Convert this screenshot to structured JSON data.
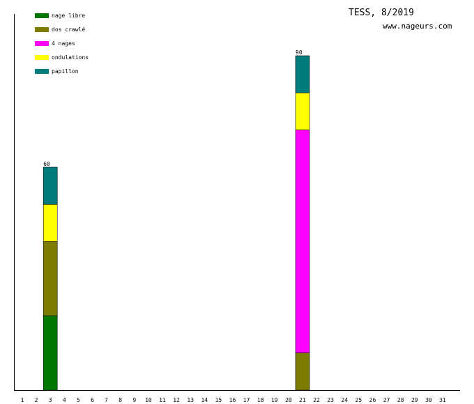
{
  "title": "TESS, 8/2019",
  "site": "www.nageurs.com",
  "chart_data": {
    "type": "bar",
    "stacked": true,
    "categories": [
      "1",
      "2",
      "3",
      "4",
      "5",
      "6",
      "7",
      "8",
      "9",
      "10",
      "11",
      "12",
      "13",
      "14",
      "15",
      "16",
      "17",
      "18",
      "19",
      "20",
      "21",
      "22",
      "23",
      "24",
      "25",
      "26",
      "27",
      "28",
      "29",
      "30",
      "31"
    ],
    "ylim": [
      0,
      90
    ],
    "legend_position": "top-left",
    "grid": false,
    "series": [
      {
        "name": "nage libre",
        "color": "#007800",
        "values": [
          0,
          0,
          20,
          0,
          0,
          0,
          0,
          0,
          0,
          0,
          0,
          0,
          0,
          0,
          0,
          0,
          0,
          0,
          0,
          0,
          0,
          0,
          0,
          0,
          0,
          0,
          0,
          0,
          0,
          0,
          0
        ]
      },
      {
        "name": "dos crawlé",
        "color": "#7c7c00",
        "values": [
          0,
          0,
          20,
          0,
          0,
          0,
          0,
          0,
          0,
          0,
          0,
          0,
          0,
          0,
          0,
          0,
          0,
          0,
          0,
          0,
          10,
          0,
          0,
          0,
          0,
          0,
          0,
          0,
          0,
          0,
          0
        ]
      },
      {
        "name": "4 nages",
        "color": "#ff00ff",
        "values": [
          0,
          0,
          0,
          0,
          0,
          0,
          0,
          0,
          0,
          0,
          0,
          0,
          0,
          0,
          0,
          0,
          0,
          0,
          0,
          0,
          60,
          0,
          0,
          0,
          0,
          0,
          0,
          0,
          0,
          0,
          0
        ]
      },
      {
        "name": "ondulations",
        "color": "#ffff00",
        "values": [
          0,
          0,
          10,
          0,
          0,
          0,
          0,
          0,
          0,
          0,
          0,
          0,
          0,
          0,
          0,
          0,
          0,
          0,
          0,
          0,
          10,
          0,
          0,
          0,
          0,
          0,
          0,
          0,
          0,
          0,
          0
        ]
      },
      {
        "name": "papillon",
        "color": "#007c7c",
        "values": [
          0,
          0,
          10,
          0,
          0,
          0,
          0,
          0,
          0,
          0,
          0,
          0,
          0,
          0,
          0,
          0,
          0,
          0,
          0,
          0,
          10,
          0,
          0,
          0,
          0,
          0,
          0,
          0,
          0,
          0,
          0
        ]
      }
    ],
    "totals": [
      {
        "category": "3",
        "label": "60"
      },
      {
        "category": "21",
        "label": "90"
      }
    ]
  }
}
